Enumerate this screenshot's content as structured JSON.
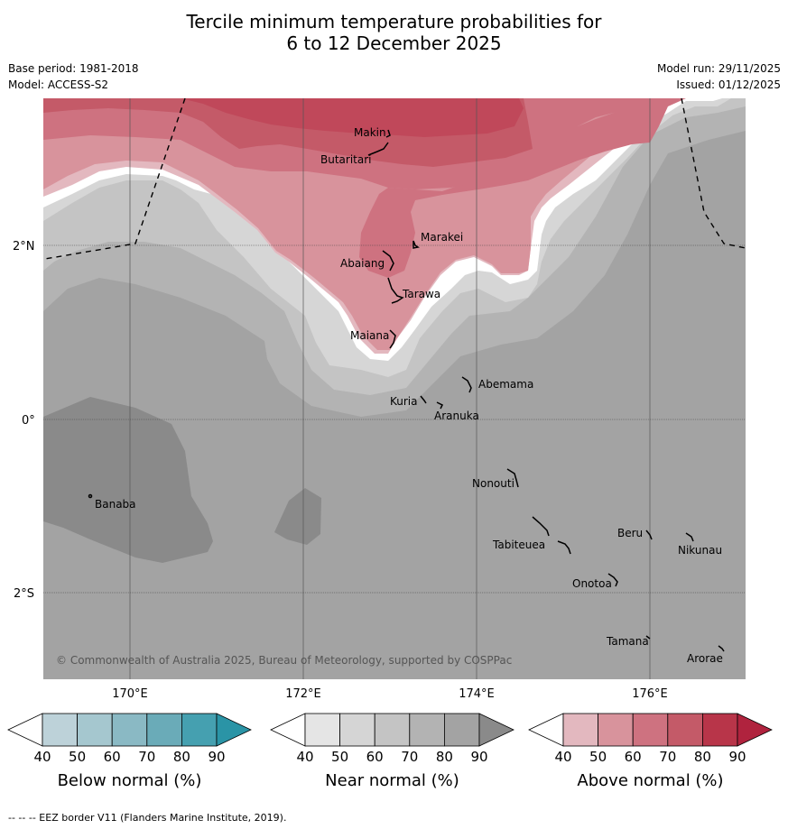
{
  "title_line1": "Tercile minimum temperature probabilities for",
  "title_line2": "6 to 12 December 2025",
  "base_period": "Base period: 1981-2018",
  "model": "Model: ACCESS-S2",
  "model_run": "Model run: 29/11/2025",
  "issued": "Issued: 01/12/2025",
  "lat_labels": [
    "2°N",
    "0°",
    "2°S"
  ],
  "lon_labels": [
    "170°E",
    "172°E",
    "174°E",
    "176°E"
  ],
  "places": {
    "makin": "Makin",
    "butaritari": "Butaritari",
    "marakei": "Marakei",
    "abaiang": "Abaiang",
    "tarawa": "Tarawa",
    "maiana": "Maiana",
    "abemama": "Abemama",
    "kuria": "Kuria",
    "aranuka": "Aranuka",
    "banaba": "Banaba",
    "nonouti": "Nonouti",
    "tabiteuea": "Tabiteuea",
    "beru": "Beru",
    "nikunau": "Nikunau",
    "onotoa": "Onotoa",
    "tamana": "Tamana",
    "arorae": "Arorae"
  },
  "copyright": "© Commonwealth of Australia 2025, Bureau of Meteorology, supported by COSPPac",
  "colorbars": {
    "below": {
      "label": "Below normal (%)",
      "colors": [
        "#bdd2d9",
        "#a5c7cf",
        "#8ab9c4",
        "#6aabb8",
        "#45a0b0",
        "#2a94a6"
      ]
    },
    "near": {
      "label": "Near normal (%)",
      "colors": [
        "#e5e5e5",
        "#d5d5d5",
        "#c4c4c4",
        "#b3b3b3",
        "#a3a3a3",
        "#8a8a8a"
      ]
    },
    "above": {
      "label": "Above normal (%)",
      "colors": [
        "#e3b8bf",
        "#d8939c",
        "#ce7280",
        "#c45a68",
        "#b83549",
        "#b0233e"
      ]
    },
    "ticks": [
      "40",
      "50",
      "60",
      "70",
      "80",
      "90"
    ]
  },
  "footer": "--  --  -- EEZ border V11 (Flanders Marine Institute, 2019)."
}
